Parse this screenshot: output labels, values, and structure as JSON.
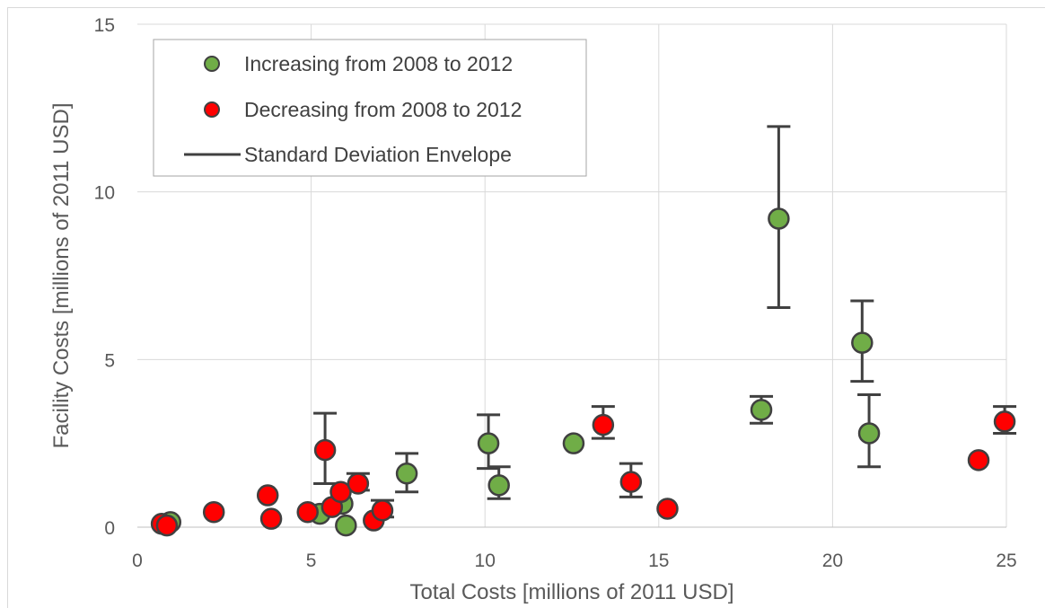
{
  "chart_data": {
    "type": "scatter",
    "xlabel": "Total Costs [millions of 2011 USD]",
    "ylabel": "Facility Costs [millions of 2011 USD]",
    "xlim": [
      0,
      25
    ],
    "ylim": [
      0,
      15
    ],
    "x_ticks": [
      "0",
      "5",
      "10",
      "15",
      "20",
      "25"
    ],
    "y_ticks": [
      "0",
      "5",
      "10",
      "15"
    ],
    "grid": "vertical and horizontal major gridlines",
    "legend_placement": "top-left",
    "legend": [
      {
        "label": "Increasing from 2008 to 2012",
        "kind": "marker",
        "color": "#70ad47"
      },
      {
        "label": "Decreasing from 2008 to 2012",
        "kind": "marker",
        "color": "#ff0000"
      },
      {
        "label": "Standard Deviation Envelope",
        "kind": "line",
        "color": "#404040"
      }
    ],
    "series": [
      {
        "name": "Increasing from 2008 to 2012",
        "color": "#70ad47",
        "points": [
          {
            "x": 0.95,
            "y": 0.15
          },
          {
            "x": 5.25,
            "y": 0.4
          },
          {
            "x": 5.9,
            "y": 0.7
          },
          {
            "x": 6.0,
            "y": 0.05
          },
          {
            "x": 7.75,
            "y": 1.6,
            "err_low": 1.05,
            "err_high": 2.2
          },
          {
            "x": 10.1,
            "y": 2.5,
            "err_low": 1.75,
            "err_high": 3.35
          },
          {
            "x": 10.4,
            "y": 1.25,
            "err_low": 0.85,
            "err_high": 1.8
          },
          {
            "x": 12.55,
            "y": 2.5
          },
          {
            "x": 17.95,
            "y": 3.5,
            "err_low": 3.1,
            "err_high": 3.9
          },
          {
            "x": 18.45,
            "y": 9.2,
            "err_low": 6.55,
            "err_high": 11.95
          },
          {
            "x": 20.85,
            "y": 5.5,
            "err_low": 4.35,
            "err_high": 6.75
          },
          {
            "x": 21.05,
            "y": 2.8,
            "err_low": 1.8,
            "err_high": 3.95
          }
        ]
      },
      {
        "name": "Decreasing from 2008 to 2012",
        "color": "#ff0000",
        "points": [
          {
            "x": 0.7,
            "y": 0.1
          },
          {
            "x": 0.85,
            "y": 0.05
          },
          {
            "x": 2.2,
            "y": 0.45
          },
          {
            "x": 3.75,
            "y": 0.95
          },
          {
            "x": 3.85,
            "y": 0.25
          },
          {
            "x": 4.9,
            "y": 0.45
          },
          {
            "x": 5.4,
            "y": 2.3,
            "err_low": 1.3,
            "err_high": 3.4
          },
          {
            "x": 5.6,
            "y": 0.6
          },
          {
            "x": 5.85,
            "y": 1.05
          },
          {
            "x": 6.35,
            "y": 1.3,
            "err_low": 1.1,
            "err_high": 1.6
          },
          {
            "x": 6.8,
            "y": 0.2
          },
          {
            "x": 7.05,
            "y": 0.5,
            "err_low": 0.3,
            "err_high": 0.8
          },
          {
            "x": 13.4,
            "y": 3.05,
            "err_low": 2.65,
            "err_high": 3.6
          },
          {
            "x": 14.2,
            "y": 1.35,
            "err_low": 0.9,
            "err_high": 1.9
          },
          {
            "x": 15.25,
            "y": 0.55
          },
          {
            "x": 24.2,
            "y": 2.0
          },
          {
            "x": 24.95,
            "y": 3.15,
            "err_low": 2.8,
            "err_high": 3.6
          }
        ]
      }
    ]
  }
}
